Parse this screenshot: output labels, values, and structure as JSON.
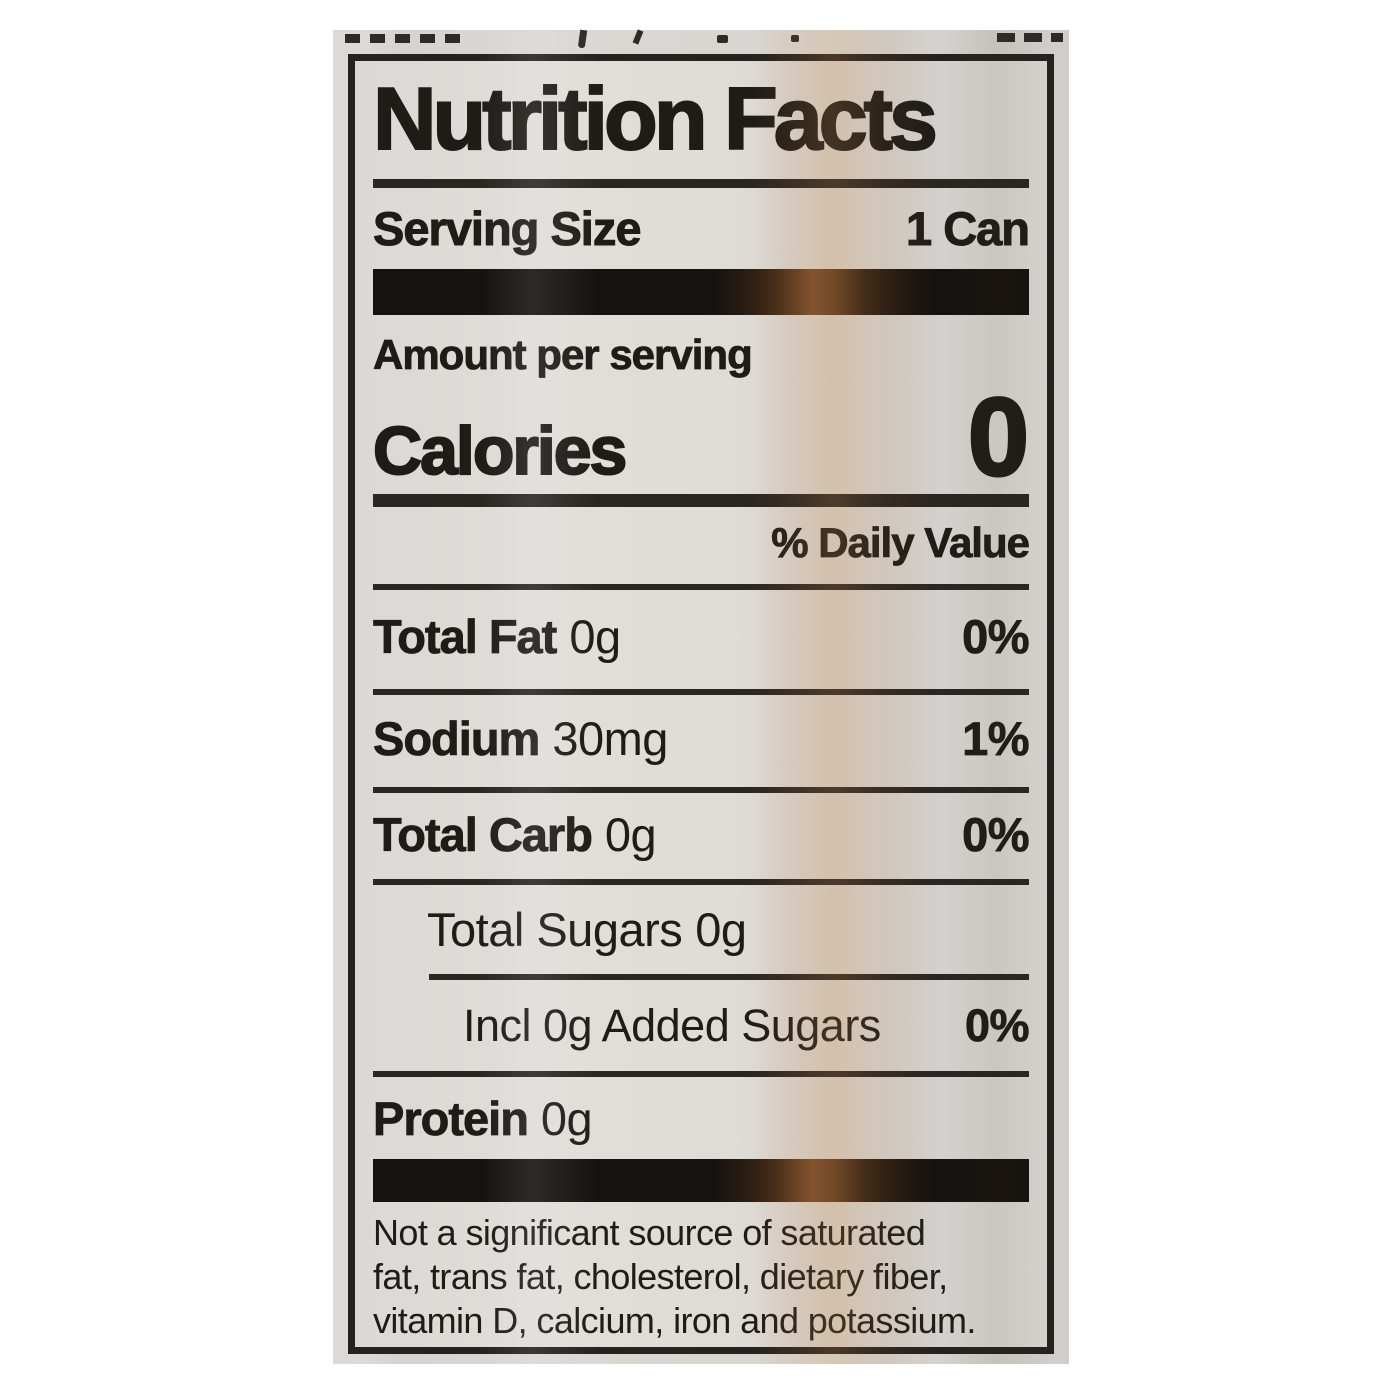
{
  "colors": {
    "ink": "#1f1c18",
    "label_background": "#dedbd7",
    "photo_background": "#d6d4d1",
    "divider_bar": "#16120f",
    "glare_brown": "#8a5a2b"
  },
  "label": {
    "title": "Nutrition Facts",
    "serving_label": "Serving Size",
    "serving_value": "1 Can",
    "amount_per_serving": "Amount per serving",
    "calories_label": "Calories",
    "calories_value": "0",
    "daily_value_header": "% Daily Value",
    "rows": [
      {
        "name": "Total Fat",
        "amount": "0g",
        "dv": "0%"
      },
      {
        "name": "Sodium",
        "amount": "30mg",
        "dv": "1%"
      },
      {
        "name": "Total Carb",
        "amount": "0g",
        "dv": "0%"
      },
      {
        "name": "Total Sugars",
        "amount": "0g",
        "dv": ""
      },
      {
        "name": "Incl 0g Added Sugars",
        "amount": "",
        "dv": "0%"
      },
      {
        "name": "Protein",
        "amount": "0g",
        "dv": ""
      }
    ],
    "footnote_lines": [
      "Not a significant source of saturated",
      "fat, trans fat, cholesterol, dietary fiber,",
      "vitamin D, calcium, iron and potassium."
    ]
  }
}
